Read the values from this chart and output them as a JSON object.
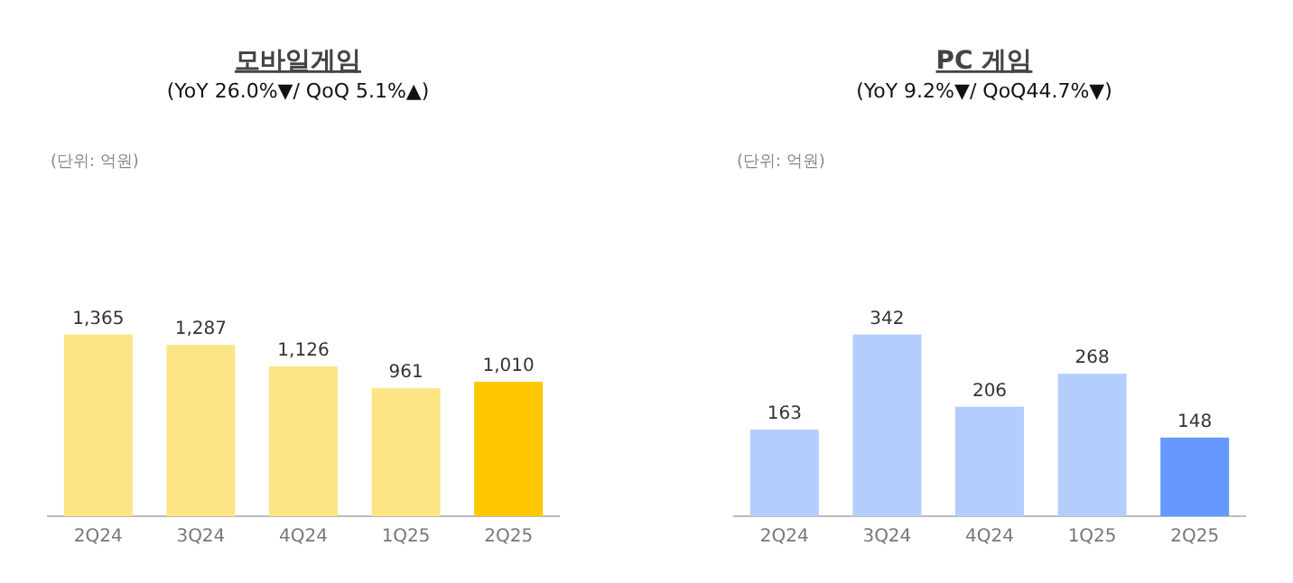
{
  "chart_data": [
    {
      "type": "bar",
      "title": "모바일게임",
      "subtitle": "(YoY 26.0%▼/ QoQ 5.1%▲)",
      "annotations": [
        "(단위: 억원)"
      ],
      "categories": [
        "2Q24",
        "3Q24",
        "4Q24",
        "1Q25",
        "2Q25"
      ],
      "values": [
        1365,
        1287,
        1126,
        961,
        1010
      ],
      "colors": [
        "#fde585",
        "#fde585",
        "#fde585",
        "#fde585",
        "#ffc800"
      ],
      "value_labels": [
        "1,365",
        "1,287",
        "1,126",
        "961",
        "1,010"
      ]
    },
    {
      "type": "bar",
      "title": "PC 게임",
      "subtitle": "(YoY 9.2%▼/ QoQ44.7%▼)",
      "annotations": [
        "(단위: 억원)"
      ],
      "categories": [
        "2Q24",
        "3Q24",
        "4Q24",
        "1Q25",
        "2Q25"
      ],
      "values": [
        163,
        342,
        206,
        268,
        148
      ],
      "colors": [
        "#b3cdfc",
        "#b3cdfc",
        "#b3cdfc",
        "#b3cdfc",
        "#6699ff"
      ],
      "value_labels": [
        "163",
        "342",
        "206",
        "268",
        "148"
      ]
    }
  ]
}
